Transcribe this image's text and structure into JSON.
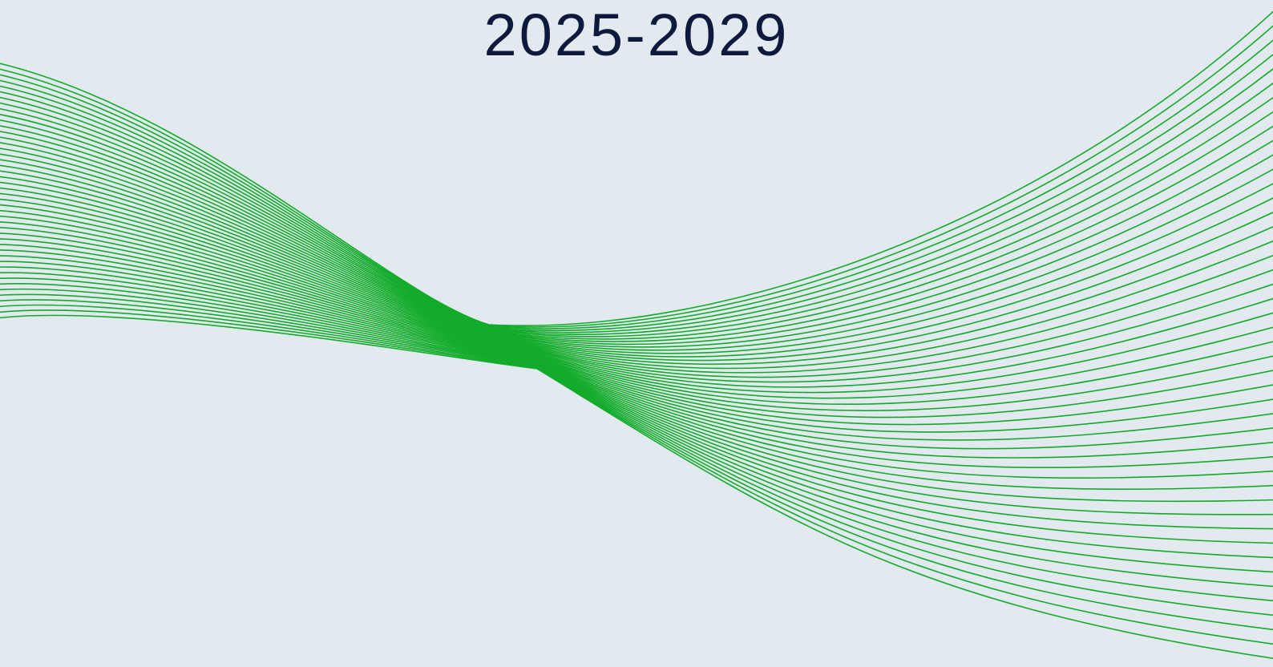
{
  "page": {
    "title": "2025-2029"
  },
  "decoration": {
    "icon": "green-line-wave-graphic",
    "line_color": "#12ab2a",
    "background_color": "#e2e9ef",
    "title_color": "#0e1a3d"
  }
}
